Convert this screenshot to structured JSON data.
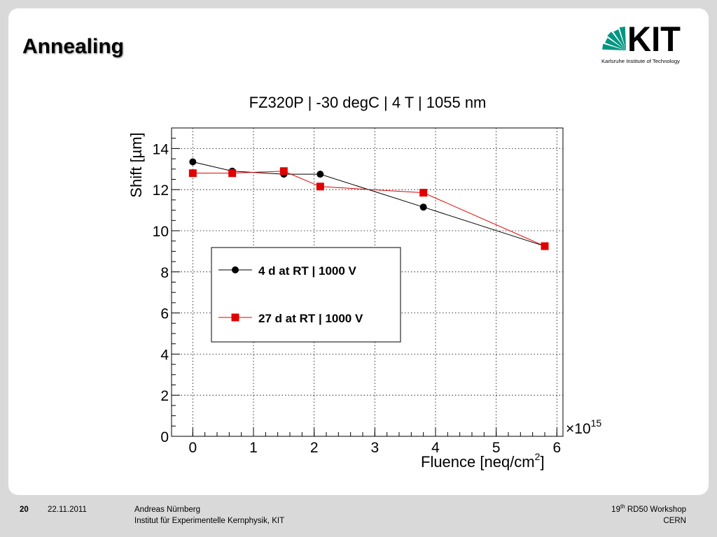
{
  "slide": {
    "title": "Annealing"
  },
  "logo": {
    "text": "KIT",
    "subtitle": "Karlsruhe Institute of Technology",
    "brand_color": "#009682"
  },
  "chart_data": {
    "type": "line",
    "title": "FZ320P | -30 degC | 4 T | 1055 nm",
    "xlabel": "Fluence [neq/cm²]",
    "xlabel_main": "Fluence [neq/cm",
    "xlabel_sup": "2",
    "xlabel_end": "]",
    "ylabel": "Shift [µm]",
    "x_multiplier_base": "×10",
    "x_multiplier_exp": "15",
    "xlim": [
      -0.35,
      6.1
    ],
    "ylim": [
      0,
      15
    ],
    "x_ticks": [
      0,
      1,
      2,
      3,
      4,
      5,
      6
    ],
    "y_ticks": [
      0,
      2,
      4,
      6,
      8,
      10,
      12,
      14
    ],
    "grid": true,
    "legend_position": "center-left",
    "series": [
      {
        "name": "4 d at RT | 1000 V",
        "color": "#000000",
        "marker": "circle",
        "x": [
          0,
          0.65,
          1.5,
          2.1,
          3.8,
          5.8
        ],
        "y": [
          13.35,
          12.9,
          12.75,
          12.75,
          11.15,
          9.25
        ]
      },
      {
        "name": "27 d at RT | 1000 V",
        "color": "#e00000",
        "marker": "square",
        "x": [
          0,
          0.65,
          1.5,
          2.1,
          3.8,
          5.8
        ],
        "y": [
          12.8,
          12.8,
          12.9,
          12.15,
          11.85,
          9.25
        ]
      }
    ]
  },
  "footer": {
    "page_number": "20",
    "date": "22.11.2011",
    "author": "Andreas Nürnberg",
    "institute": "Institut für Experimentelle Kernphysik, KIT",
    "workshop_prefix": "19",
    "workshop_sup": "th",
    "workshop_suffix": " RD50 Workshop",
    "location": "CERN"
  }
}
